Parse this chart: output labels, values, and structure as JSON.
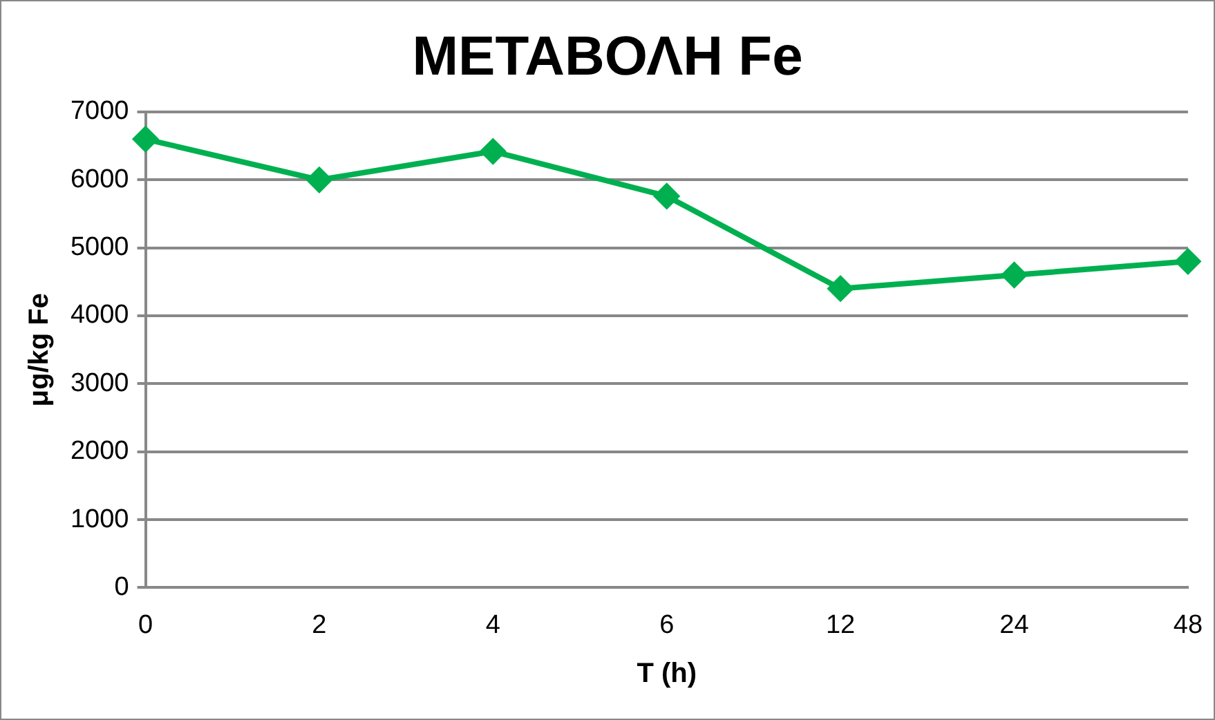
{
  "chart_data": {
    "type": "line",
    "title": "ΜΕΤΑΒΟΛΗ Fe",
    "xlabel": "T (h)",
    "ylabel": "μg/kg Fe",
    "categories": [
      "0",
      "2",
      "4",
      "6",
      "12",
      "24",
      "48"
    ],
    "series": [
      {
        "color": "#00b050",
        "values": [
          6600,
          6000,
          6420,
          5760,
          4400,
          4600,
          4800
        ]
      }
    ],
    "ylim": [
      0,
      7000
    ],
    "yticks": [
      0,
      1000,
      2000,
      3000,
      4000,
      5000,
      6000,
      7000
    ],
    "grid": "y",
    "legend": false,
    "marker": "diamond",
    "line_style": "solid"
  }
}
